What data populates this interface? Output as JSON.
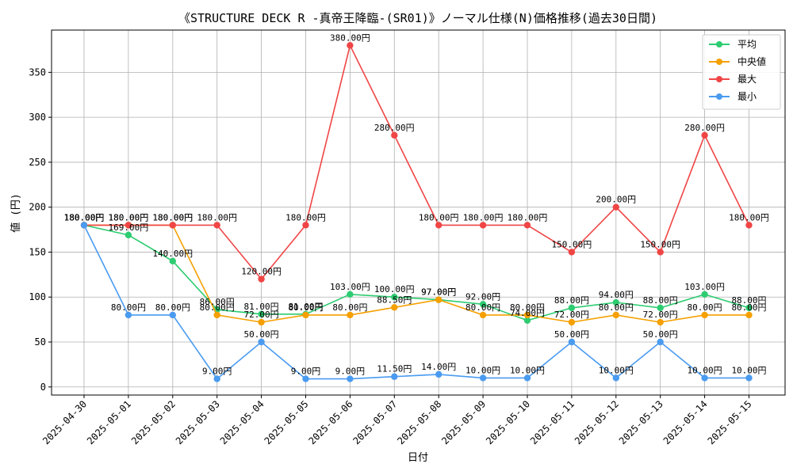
{
  "chart_data": {
    "type": "line",
    "title": "《STRUCTURE DECK R -真帝王降臨-(SR01)》ノーマル仕様(N)価格推移(過去30日間)",
    "xlabel": "日付",
    "ylabel": "値 (円)",
    "ylim": [
      -9,
      397
    ],
    "yticks": [
      0,
      50,
      100,
      150,
      200,
      250,
      300,
      350
    ],
    "grid": true,
    "legend_position": "top-right",
    "value_suffix": "円",
    "categories": [
      "2025-04-30",
      "2025-05-01",
      "2025-05-02",
      "2025-05-03",
      "2025-05-04",
      "2025-05-05",
      "2025-05-06",
      "2025-05-07",
      "2025-05-08",
      "2025-05-09",
      "2025-05-10",
      "2025-05-11",
      "2025-05-12",
      "2025-05-13",
      "2025-05-14",
      "2025-05-15"
    ],
    "series": [
      {
        "name": "平均",
        "color": "#2ecc71",
        "values": [
          180,
          169,
          140,
          86,
          81,
          81,
          103,
          100,
          97,
          92,
          74,
          88,
          94,
          88,
          103,
          88
        ]
      },
      {
        "name": "中央値",
        "color": "#f5a000",
        "values": [
          180,
          180,
          180,
          80,
          72,
          80,
          80,
          88.5,
          97,
          80,
          80,
          72,
          80,
          72,
          80,
          80
        ]
      },
      {
        "name": "最大",
        "color": "#f04545",
        "values": [
          180,
          180,
          180,
          180,
          120,
          180,
          380,
          280,
          180,
          180,
          180,
          150,
          200,
          150,
          280,
          180
        ]
      },
      {
        "name": "最小",
        "color": "#4a9bf0",
        "values": [
          180,
          80,
          80,
          9,
          50,
          9,
          9,
          11.5,
          14,
          10,
          10,
          50,
          10,
          50,
          10,
          10
        ]
      }
    ]
  }
}
